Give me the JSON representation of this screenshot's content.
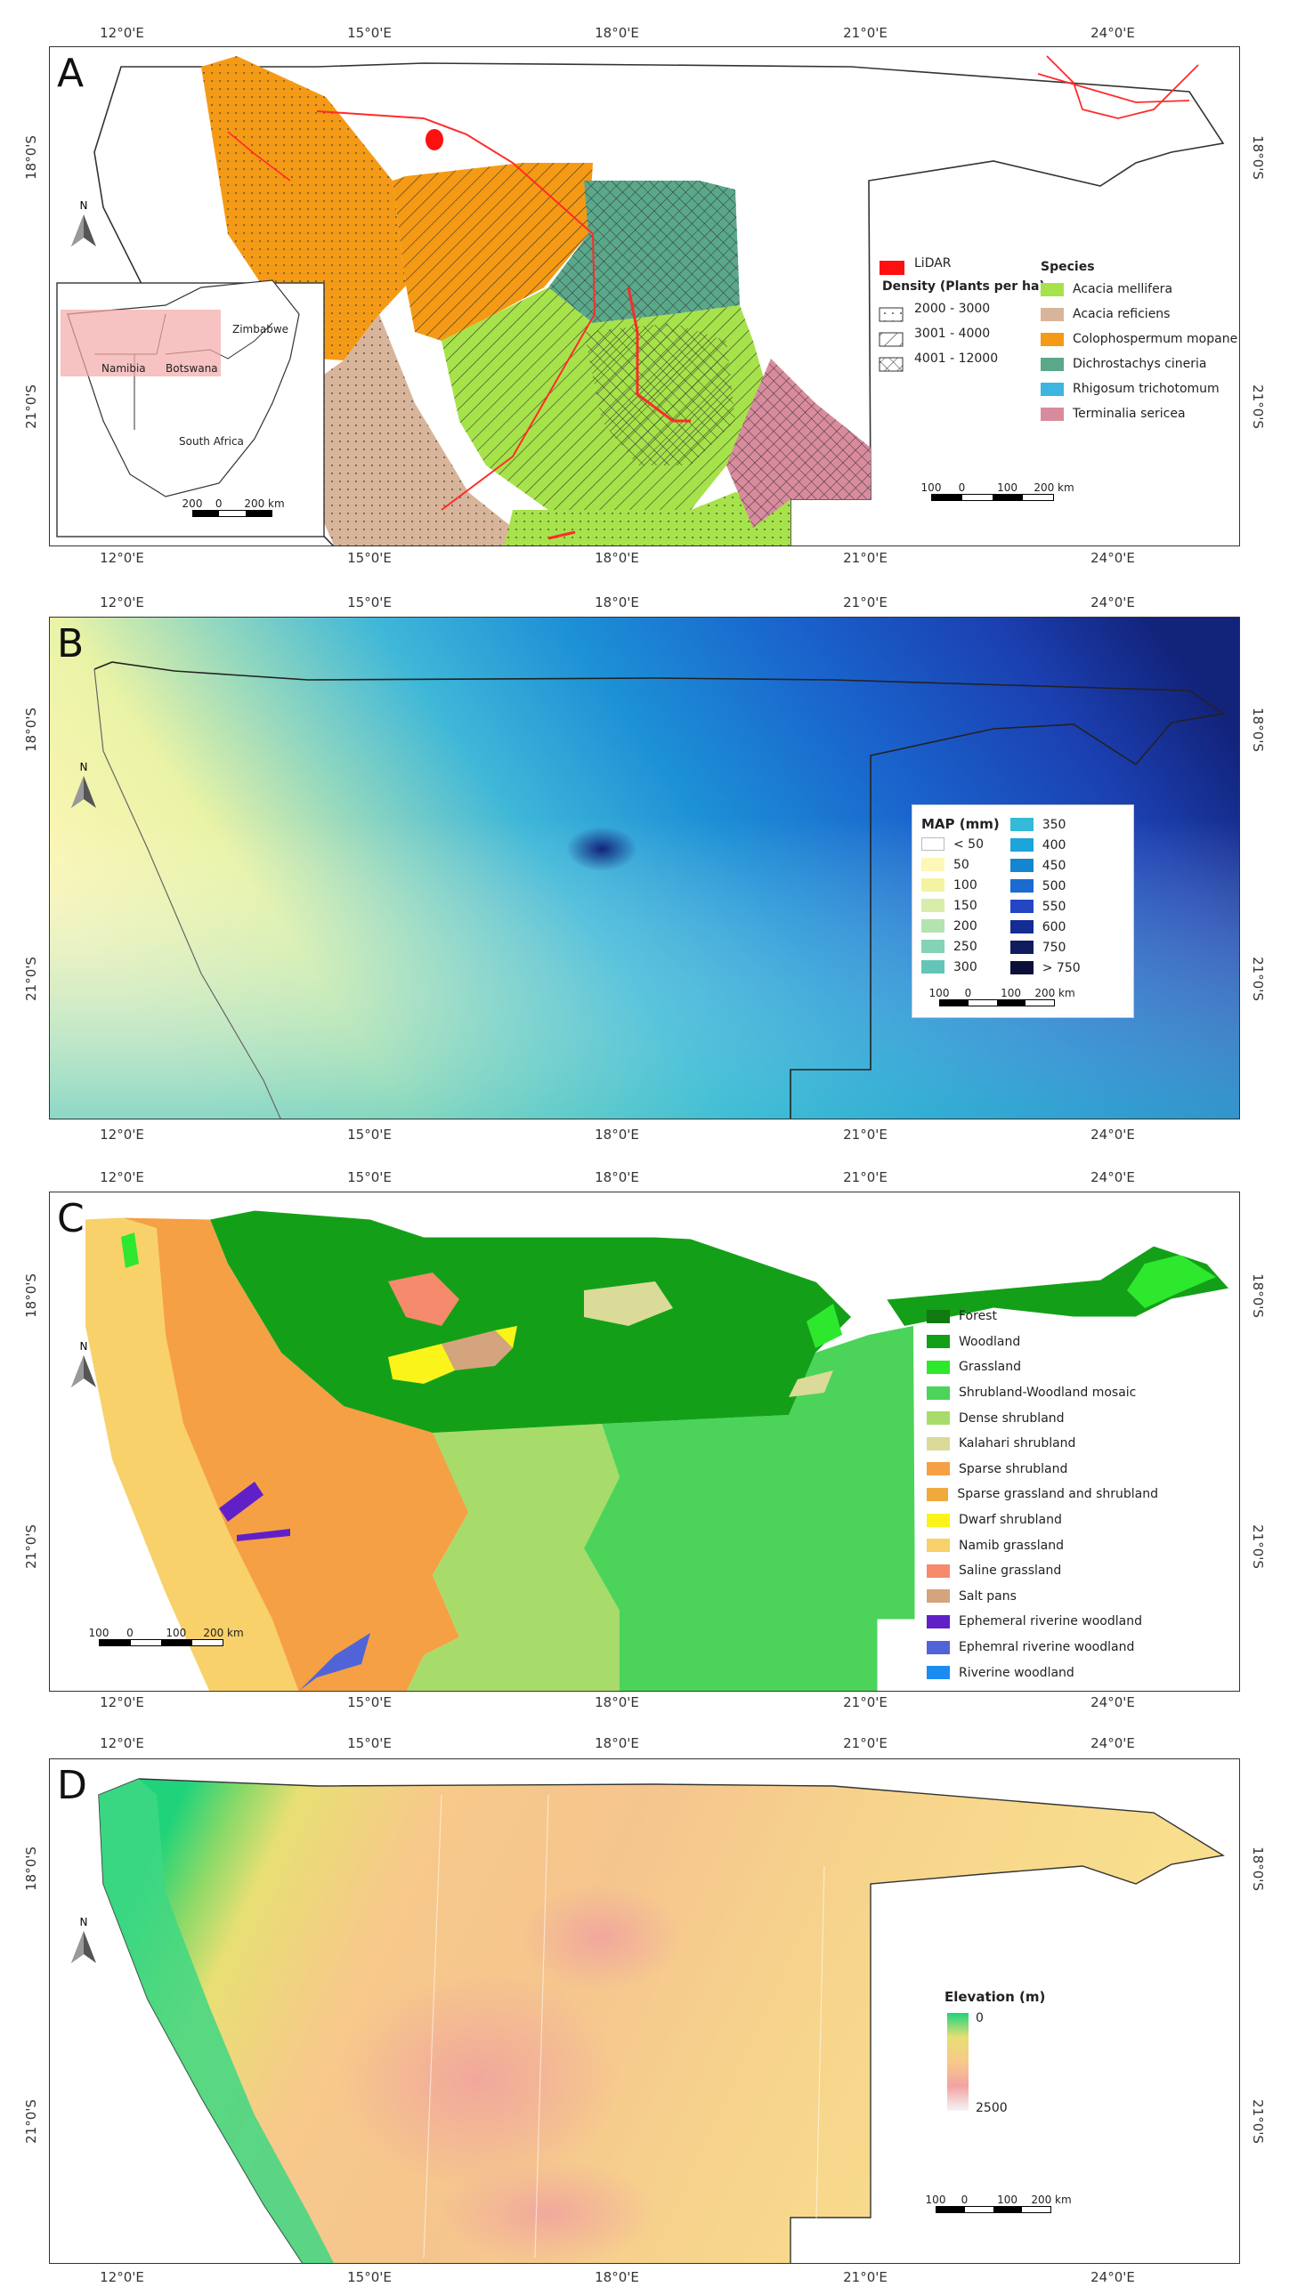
{
  "lon_labels": [
    "12°0'E",
    "15°0'E",
    "18°0'E",
    "21°0'E",
    "24°0'E"
  ],
  "lat_labels": [
    "18°0'S",
    "21°0'S"
  ],
  "north_label": "N",
  "panels": {
    "a": {
      "letter": "A",
      "lidar_label": "LiDAR",
      "density_title": "Density (Plants per ha)",
      "density_items": [
        "2000 - 3000",
        "3001 - 4000",
        "4001 - 12000"
      ],
      "species_title": "Species",
      "species_items": [
        {
          "label": "Acacia mellifera",
          "color": "#a6e34a"
        },
        {
          "label": "Acacia reficiens",
          "color": "#d8b59a"
        },
        {
          "label": "Colophospermum mopane",
          "color": "#f59a14"
        },
        {
          "label": "Dichrostachys cineria",
          "color": "#5aa88a"
        },
        {
          "label": "Rhigosum trichotomum",
          "color": "#3cb6e0"
        },
        {
          "label": "Terminalia sericea",
          "color": "#d98b9e"
        }
      ],
      "inset_labels": {
        "zimbabwe": "Zimbabwe",
        "namibia": "Namibia",
        "botswana": "Botswana",
        "south_africa": "South Africa"
      },
      "inset_scale": [
        "200",
        "0",
        "200 km"
      ],
      "scale": [
        "100",
        "0",
        "100",
        "200 km"
      ]
    },
    "b": {
      "letter": "B",
      "legend_title": "MAP (mm)",
      "legend_left": [
        {
          "label": "< 50",
          "color": "#ffffff"
        },
        {
          "label": "50",
          "color": "#fdf7b8"
        },
        {
          "label": "100",
          "color": "#f2f4a2"
        },
        {
          "label": "150",
          "color": "#d9edaa"
        },
        {
          "label": "200",
          "color": "#b5e3b0"
        },
        {
          "label": "250",
          "color": "#85d3b6"
        },
        {
          "label": "300",
          "color": "#63c5b8"
        }
      ],
      "legend_right": [
        {
          "label": "350",
          "color": "#34bad6"
        },
        {
          "label": "400",
          "color": "#1ca4db"
        },
        {
          "label": "450",
          "color": "#1486cf"
        },
        {
          "label": "500",
          "color": "#1a6cd1"
        },
        {
          "label": "550",
          "color": "#2346c4"
        },
        {
          "label": "600",
          "color": "#142c94"
        },
        {
          "label": "750",
          "color": "#101c5e"
        },
        {
          "label": "> 750",
          "color": "#0c0f38"
        }
      ],
      "scale": [
        "100",
        "0",
        "100",
        "200 km"
      ]
    },
    "c": {
      "letter": "C",
      "legend_items": [
        {
          "label": "Forest",
          "color": "#0f7a10"
        },
        {
          "label": "Woodland",
          "color": "#13a018"
        },
        {
          "label": "Grassland",
          "color": "#2ee82e"
        },
        {
          "label": "Shrubland-Woodland mosaic",
          "color": "#4cd35a"
        },
        {
          "label": "Dense shrubland",
          "color": "#a8dc6a"
        },
        {
          "label": "Kalahari shrubland",
          "color": "#dadb98"
        },
        {
          "label": "Sparse shrubland",
          "color": "#f5a044"
        },
        {
          "label": "Sparse grassland and shrubland",
          "color": "#f0aa3c"
        },
        {
          "label": "Dwarf shrubland",
          "color": "#fbf41a"
        },
        {
          "label": "Namib grassland",
          "color": "#f8d16a"
        },
        {
          "label": "Saline grassland",
          "color": "#f58a6c"
        },
        {
          "label": "Salt pans",
          "color": "#d4a47c"
        },
        {
          "label": "Ephemeral riverine woodland",
          "color": "#6020c8"
        },
        {
          "label": "Ephemral riverine woodland",
          "color": "#5064d8"
        },
        {
          "label": "Riverine woodland",
          "color": "#1a8cf0"
        }
      ],
      "scale": [
        "100",
        "0",
        "100",
        "200 km"
      ]
    },
    "d": {
      "letter": "D",
      "legend_title": "Elevation (m)",
      "legend_min": "0",
      "legend_max": "2500",
      "scale": [
        "100",
        "0",
        "100",
        "200 km"
      ]
    }
  }
}
